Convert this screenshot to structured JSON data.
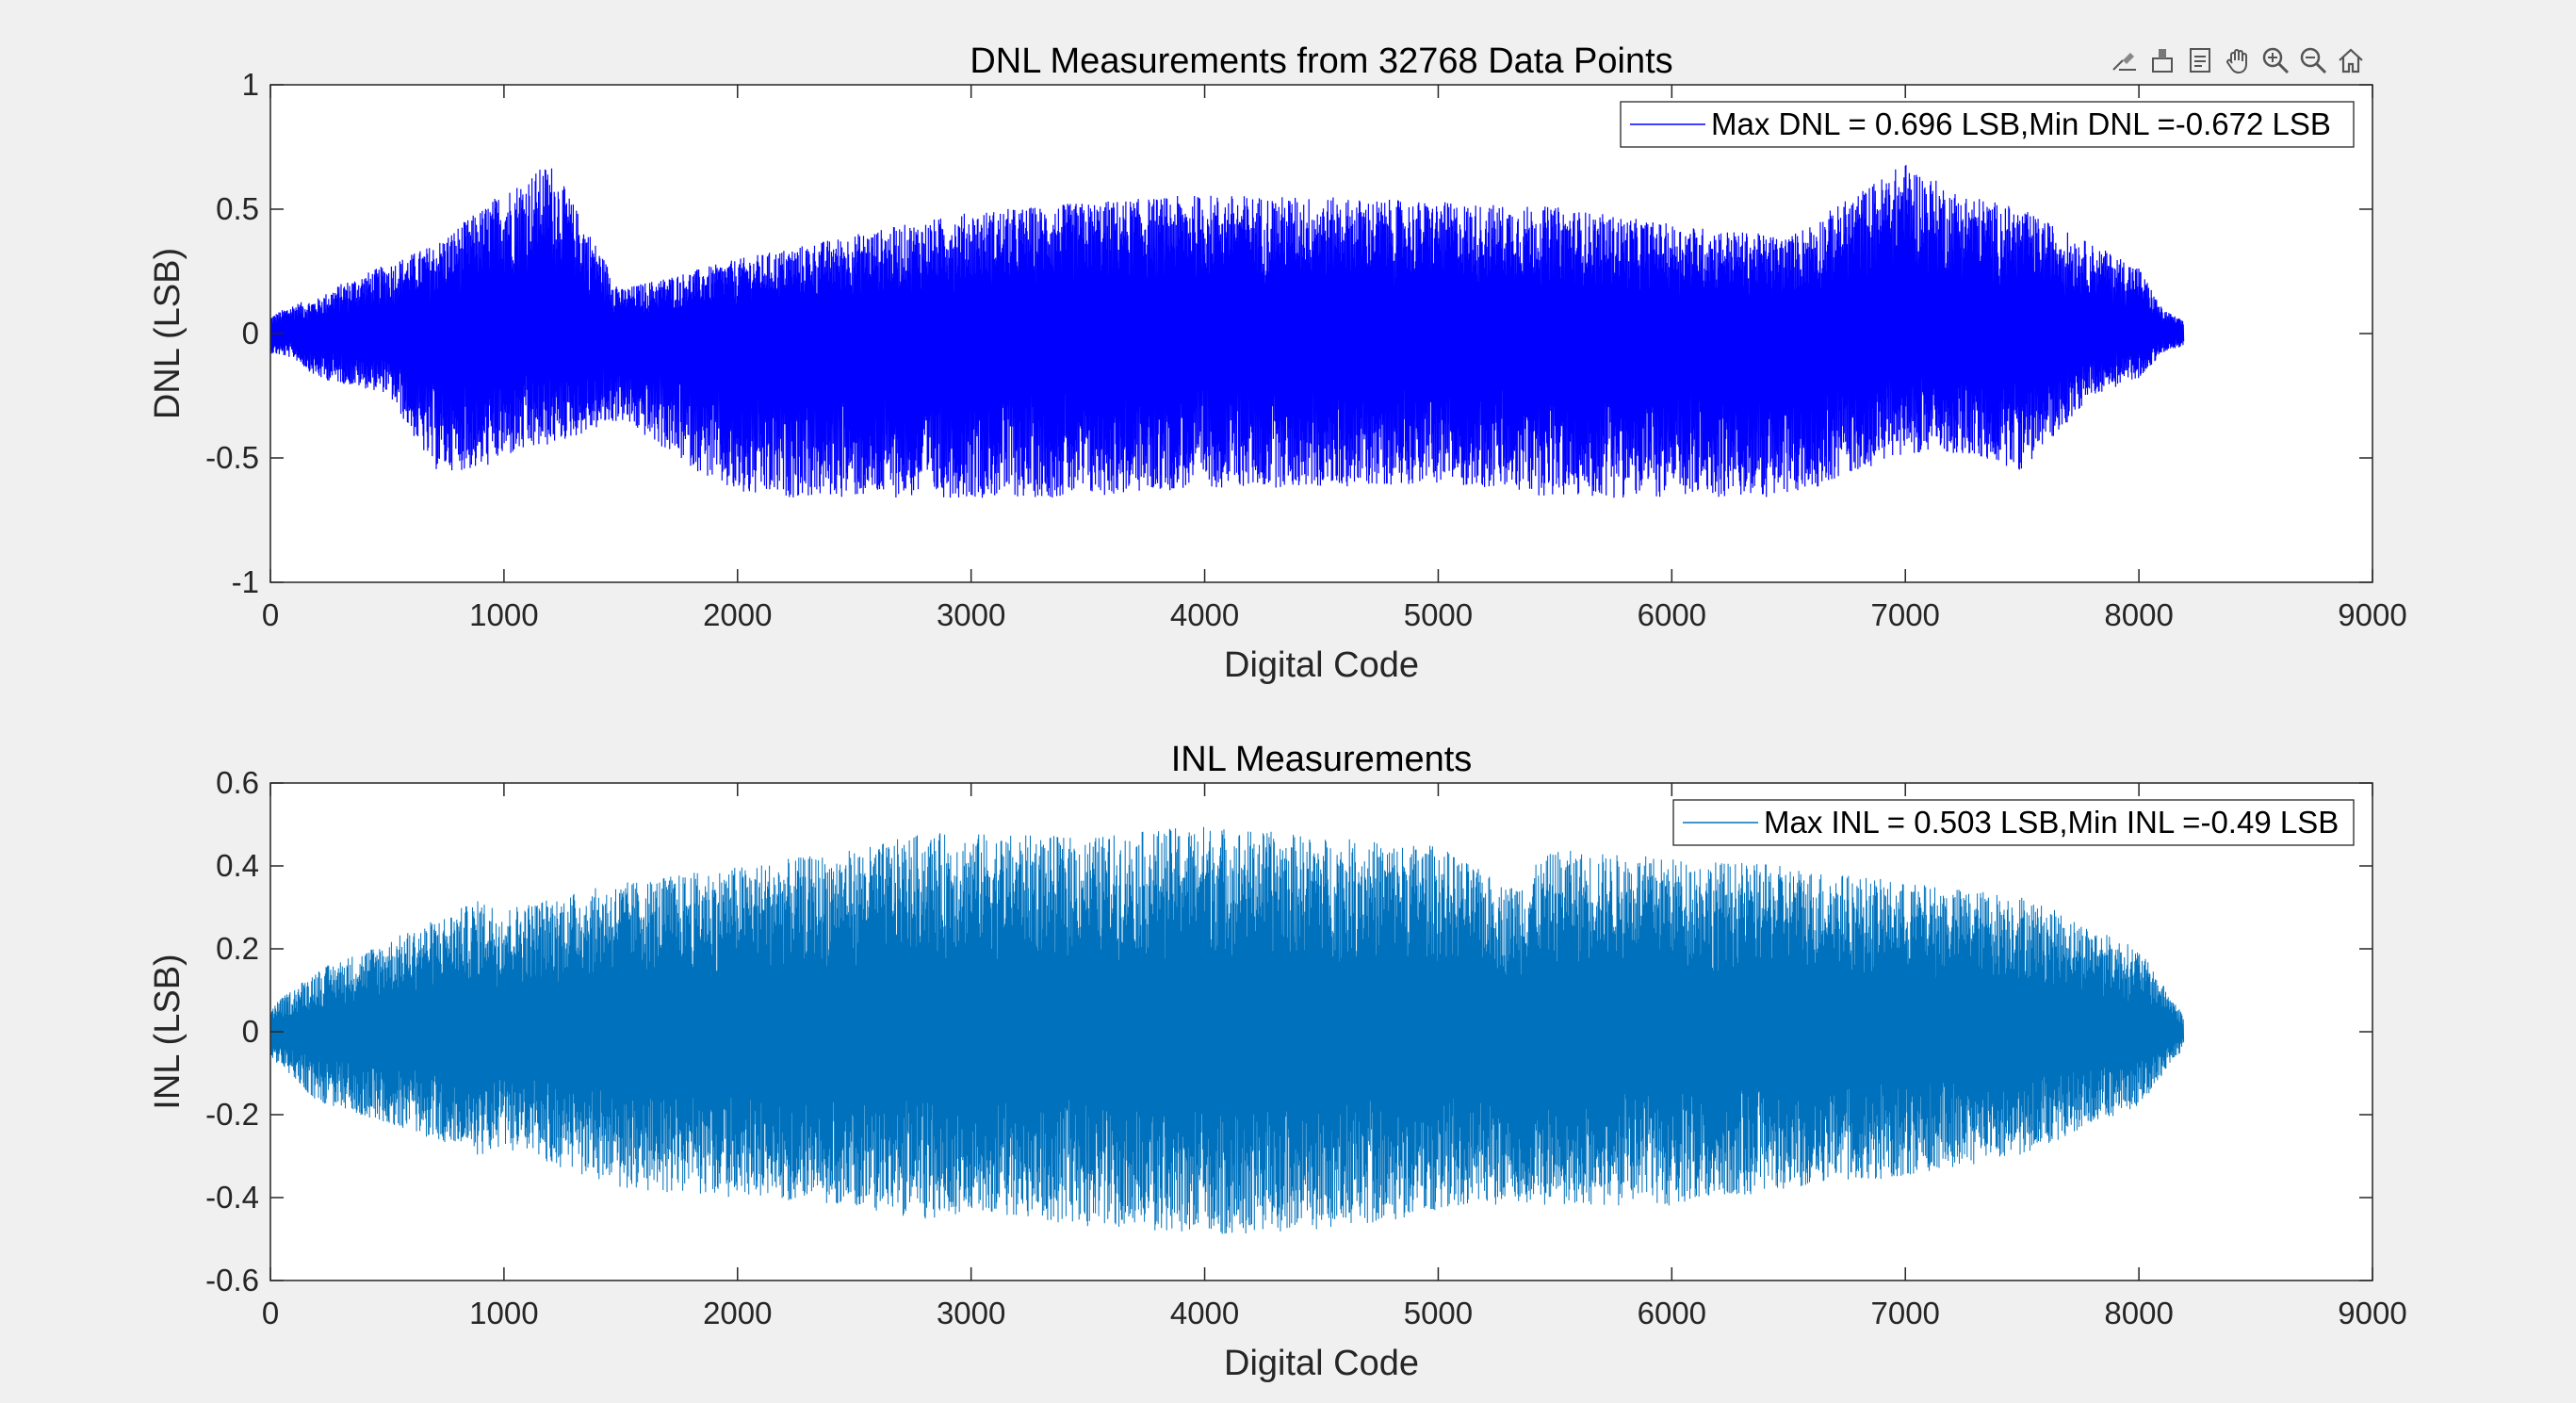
{
  "toolbar": {
    "icons": [
      "brush-icon",
      "data-tips-icon",
      "export-icon",
      "pan-icon",
      "zoom-in-icon",
      "zoom-out-icon",
      "home-icon"
    ]
  },
  "chart_data": [
    {
      "type": "line",
      "title": "DNL Measurements from 32768 Data Points",
      "xlabel": "Digital Code",
      "ylabel": "DNL (LSB)",
      "xlim": [
        0,
        9000
      ],
      "ylim": [
        -1,
        1
      ],
      "xticks": [
        0,
        1000,
        2000,
        3000,
        4000,
        5000,
        6000,
        7000,
        8000,
        9000
      ],
      "yticks": [
        -1,
        -0.5,
        0,
        0.5,
        1
      ],
      "ytick_labels": [
        "-1",
        "-0.5",
        "0",
        "0.5",
        "1"
      ],
      "grid": false,
      "legend_position": "top-right",
      "series": [
        {
          "name": "Max DNL = 0.696 LSB,Min DNL =-0.672 LSB",
          "color": "#0000ff",
          "x_range": [
            0,
            8192
          ],
          "max": 0.696,
          "min": -0.672,
          "envelope": {
            "x": [
              0,
              100,
              200,
              300,
              500,
              700,
              900,
              1000,
              1200,
              1500,
              2000,
              2500,
              3000,
              3500,
              4000,
              4500,
              5000,
              5500,
              6000,
              6500,
              7000,
              7200,
              7500,
              7800,
              8000,
              8100,
              8192
            ],
            "upper": [
              0.07,
              0.12,
              0.14,
              0.2,
              0.28,
              0.36,
              0.5,
              0.58,
              0.69,
              0.18,
              0.3,
              0.4,
              0.49,
              0.53,
              0.56,
              0.55,
              0.53,
              0.51,
              0.44,
              0.39,
              0.69,
              0.58,
              0.5,
              0.36,
              0.27,
              0.1,
              0.05
            ],
            "lower": [
              -0.08,
              -0.1,
              -0.18,
              -0.2,
              -0.24,
              -0.55,
              -0.55,
              -0.5,
              -0.45,
              -0.35,
              -0.66,
              -0.66,
              -0.66,
              -0.66,
              -0.62,
              -0.62,
              -0.6,
              -0.66,
              -0.66,
              -0.66,
              -0.48,
              -0.48,
              -0.55,
              -0.25,
              -0.18,
              -0.08,
              -0.05
            ]
          }
        }
      ]
    },
    {
      "type": "line",
      "title": "INL Measurements",
      "xlabel": "Digital Code",
      "ylabel": "INL (LSB)",
      "xlim": [
        0,
        9000
      ],
      "ylim": [
        -0.6,
        0.6
      ],
      "xticks": [
        0,
        1000,
        2000,
        3000,
        4000,
        5000,
        6000,
        7000,
        8000,
        9000
      ],
      "yticks": [
        -0.6,
        -0.4,
        -0.2,
        0,
        0.2,
        0.4,
        0.6
      ],
      "ytick_labels": [
        "-0.6",
        "-0.4",
        "-0.2",
        "0",
        "0.2",
        "0.4",
        "0.6"
      ],
      "grid": false,
      "legend_position": "top-right",
      "series": [
        {
          "name": "Max INL = 0.503 LSB,Min INL =-0.49 LSB",
          "color": "#0072bd",
          "x_range": [
            0,
            8192
          ],
          "max": 0.503,
          "min": -0.49,
          "envelope": {
            "x": [
              0,
              200,
              500,
              900,
              1000,
              1500,
              2000,
              2500,
              2800,
              3000,
              3500,
              4000,
              4500,
              5000,
              5300,
              5500,
              6000,
              6500,
              7000,
              7500,
              8000,
              8192
            ],
            "upper": [
              0.06,
              0.15,
              0.22,
              0.32,
              0.3,
              0.36,
              0.4,
              0.44,
              0.48,
              0.48,
              0.47,
              0.5,
              0.47,
              0.45,
              0.35,
              0.44,
              0.42,
              0.4,
              0.36,
              0.33,
              0.2,
              0.04
            ],
            "lower": [
              -0.06,
              -0.17,
              -0.22,
              -0.3,
              -0.28,
              -0.38,
              -0.4,
              -0.42,
              -0.46,
              -0.43,
              -0.47,
              -0.49,
              -0.48,
              -0.44,
              -0.42,
              -0.42,
              -0.42,
              -0.38,
              -0.35,
              -0.3,
              -0.18,
              -0.04
            ]
          }
        }
      ]
    }
  ]
}
